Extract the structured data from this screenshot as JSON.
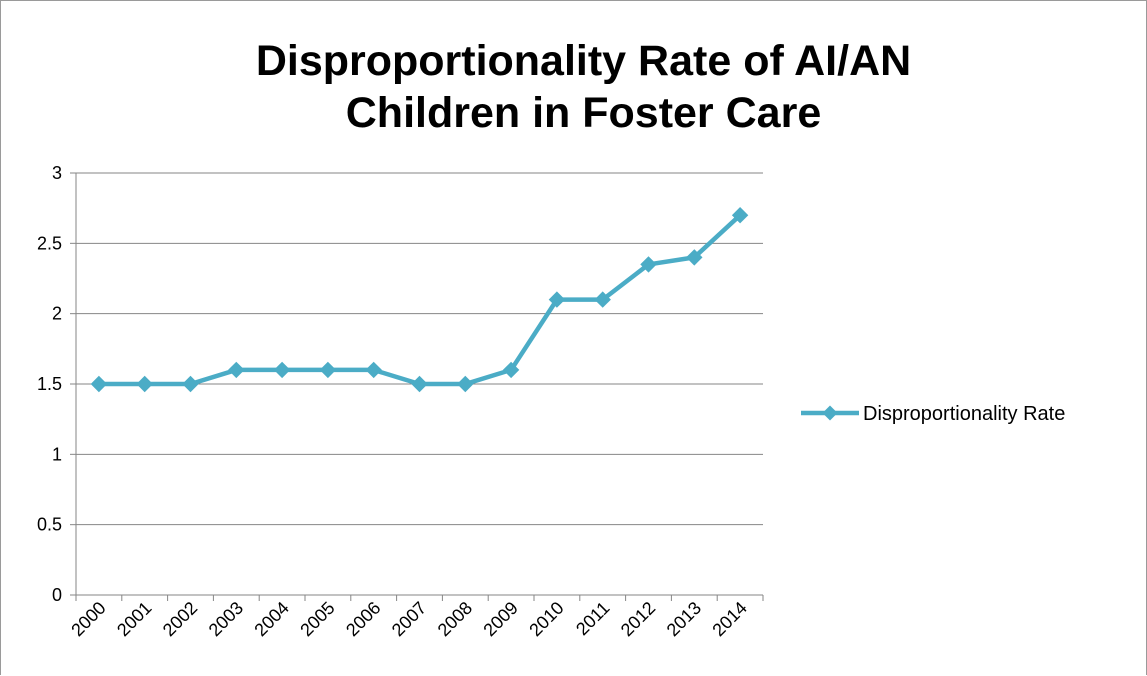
{
  "chart_data": {
    "type": "line",
    "title_lines": [
      "Disproportionality Rate of AI/AN",
      "Children in Foster Care"
    ],
    "xlabel": "",
    "ylabel": "",
    "categories": [
      "2000",
      "2001",
      "2002",
      "2003",
      "2004",
      "2005",
      "2006",
      "2007",
      "2008",
      "2009",
      "2010",
      "2011",
      "2012",
      "2013",
      "2014"
    ],
    "series": [
      {
        "name": "Disproportionality Rate",
        "values": [
          1.5,
          1.5,
          1.5,
          1.6,
          1.6,
          1.6,
          1.6,
          1.5,
          1.5,
          1.6,
          2.1,
          2.1,
          2.35,
          2.4,
          2.7
        ],
        "color": "#4bacc6"
      }
    ],
    "ylim": [
      0,
      3
    ],
    "yticks": [
      0,
      0.5,
      1,
      1.5,
      2,
      2.5,
      3
    ],
    "ytick_labels": [
      "0",
      "0.5",
      "1",
      "1.5",
      "2",
      "2.5",
      "3"
    ],
    "grid": true,
    "legend_position": "right",
    "marker": "diamond"
  }
}
